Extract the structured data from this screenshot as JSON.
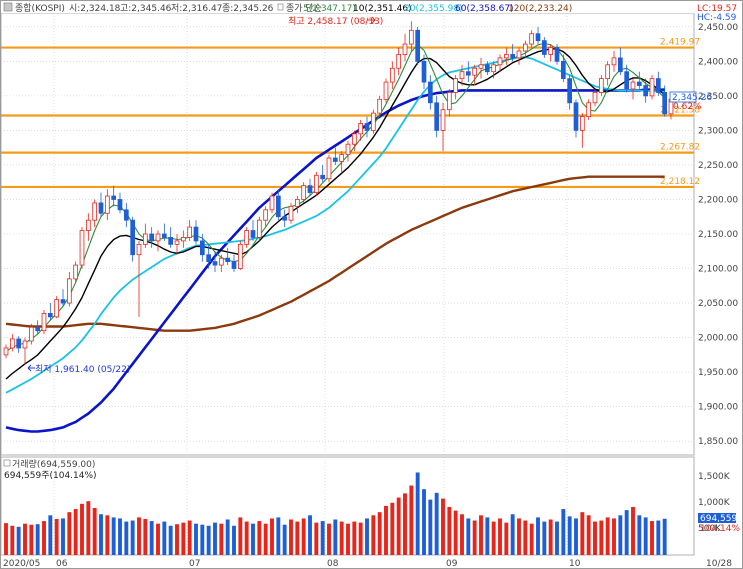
{
  "header": {
    "index_label": "종합(KOSPI)",
    "open_text": "시:2,324.18",
    "high_text": "고:2,345.46",
    "low_text": "저:2,316.47",
    "close_text": "종:2,345.26",
    "ma_prefix": "종가 단순",
    "ma5": "5(2,347.17)",
    "ma10": "10(2,351.46)",
    "ma20": "20(2,355.98)",
    "ma60": "60(2,358.67)",
    "ma120": "120(2,233.24)",
    "lc": "LC:19.57",
    "hc": "HC:-4.59"
  },
  "annotations": {
    "high_label": "최고 2,458.17 (08/13)",
    "low_label": "최저 1,961.40 (05/22)",
    "last_price_box": "2,345.26",
    "change_pct": "0.62%",
    "h_lines": [
      {
        "value": 2419.97,
        "label": "2,419.97"
      },
      {
        "value": 2321.58,
        "label": "2,321.58"
      },
      {
        "value": 2267.82,
        "label": "2,267.82"
      },
      {
        "value": 2218.12,
        "label": "2,218.12"
      }
    ]
  },
  "volume_panel": {
    "title": "거래량(694,559.00)",
    "subtitle": "694,559주(104.14%)",
    "axis_ticks": [
      "1,500K",
      "1,000K",
      "500K"
    ],
    "last_box": "694,559",
    "last_pct": "104.14%"
  },
  "colors": {
    "up": "#e8251b",
    "down": "#1e5fd8",
    "ma5": "#2e8b3d",
    "ma10": "#000000",
    "ma20": "#19c2e6",
    "ma60": "#0a14c8",
    "ma120": "#8b3a0e",
    "hline": "#f59a19"
  },
  "chart_data": {
    "type": "candlestick",
    "y_ticks": [
      "2,450.00",
      "2,400.00",
      "2,350.00",
      "2,300.00",
      "2,250.00",
      "2,200.00",
      "2,150.00",
      "2,100.00",
      "2,050.00",
      "2,000.00",
      "1,950.00",
      "1,900.00",
      "1,850.00"
    ],
    "ylim": [
      1830,
      2470
    ],
    "x_labels": [
      "2020/05",
      "06",
      "07",
      "08",
      "09",
      "10",
      "10/28"
    ],
    "candles": [
      [
        1975,
        1990,
        1970,
        1985
      ],
      [
        1985,
        2005,
        1980,
        1998
      ],
      [
        1998,
        2002,
        1978,
        1985
      ],
      [
        1985,
        2000,
        1961,
        1995
      ],
      [
        1995,
        2020,
        1990,
        2015
      ],
      [
        2015,
        2025,
        2005,
        2010
      ],
      [
        2010,
        2040,
        2005,
        2035
      ],
      [
        2035,
        2050,
        2025,
        2030
      ],
      [
        2030,
        2060,
        2028,
        2055
      ],
      [
        2055,
        2070,
        2045,
        2050
      ],
      [
        2050,
        2095,
        2045,
        2085
      ],
      [
        2085,
        2110,
        2080,
        2105
      ],
      [
        2105,
        2160,
        2100,
        2155
      ],
      [
        2155,
        2180,
        2140,
        2170
      ],
      [
        2170,
        2200,
        2160,
        2195
      ],
      [
        2195,
        2210,
        2175,
        2180
      ],
      [
        2180,
        2215,
        2170,
        2205
      ],
      [
        2205,
        2220,
        2190,
        2200
      ],
      [
        2200,
        2210,
        2180,
        2185
      ],
      [
        2185,
        2195,
        2160,
        2170
      ],
      [
        2170,
        2175,
        2110,
        2120
      ],
      [
        2120,
        2140,
        2030,
        2135
      ],
      [
        2135,
        2165,
        2130,
        2150
      ],
      [
        2150,
        2160,
        2130,
        2140
      ],
      [
        2140,
        2155,
        2125,
        2150
      ],
      [
        2150,
        2165,
        2140,
        2145
      ],
      [
        2145,
        2160,
        2130,
        2135
      ],
      [
        2135,
        2150,
        2120,
        2140
      ],
      [
        2140,
        2155,
        2130,
        2145
      ],
      [
        2145,
        2170,
        2140,
        2160
      ],
      [
        2160,
        2170,
        2135,
        2140
      ],
      [
        2140,
        2150,
        2110,
        2120
      ],
      [
        2120,
        2135,
        2100,
        2110
      ],
      [
        2110,
        2125,
        2095,
        2105
      ],
      [
        2105,
        2120,
        2095,
        2115
      ],
      [
        2115,
        2130,
        2105,
        2110
      ],
      [
        2110,
        2120,
        2095,
        2100
      ],
      [
        2100,
        2140,
        2098,
        2135
      ],
      [
        2135,
        2160,
        2130,
        2155
      ],
      [
        2155,
        2170,
        2140,
        2145
      ],
      [
        2145,
        2175,
        2140,
        2170
      ],
      [
        2170,
        2190,
        2160,
        2185
      ],
      [
        2185,
        2210,
        2180,
        2205
      ],
      [
        2205,
        2215,
        2170,
        2175
      ],
      [
        2175,
        2185,
        2160,
        2170
      ],
      [
        2170,
        2195,
        2165,
        2190
      ],
      [
        2190,
        2205,
        2180,
        2200
      ],
      [
        2200,
        2225,
        2195,
        2220
      ],
      [
        2220,
        2230,
        2205,
        2210
      ],
      [
        2210,
        2240,
        2205,
        2235
      ],
      [
        2235,
        2250,
        2225,
        2230
      ],
      [
        2230,
        2265,
        2225,
        2260
      ],
      [
        2260,
        2275,
        2250,
        2255
      ],
      [
        2255,
        2270,
        2240,
        2265
      ],
      [
        2265,
        2285,
        2255,
        2280
      ],
      [
        2280,
        2300,
        2270,
        2295
      ],
      [
        2295,
        2315,
        2285,
        2310
      ],
      [
        2310,
        2320,
        2290,
        2300
      ],
      [
        2300,
        2330,
        2295,
        2325
      ],
      [
        2325,
        2350,
        2320,
        2345
      ],
      [
        2345,
        2375,
        2340,
        2370
      ],
      [
        2370,
        2400,
        2360,
        2390
      ],
      [
        2390,
        2420,
        2380,
        2410
      ],
      [
        2410,
        2440,
        2400,
        2425
      ],
      [
        2425,
        2458,
        2415,
        2445
      ],
      [
        2445,
        2450,
        2395,
        2400
      ],
      [
        2400,
        2410,
        2360,
        2370
      ],
      [
        2370,
        2380,
        2330,
        2340
      ],
      [
        2340,
        2350,
        2290,
        2300
      ],
      [
        2300,
        2340,
        2270,
        2330
      ],
      [
        2330,
        2360,
        2320,
        2355
      ],
      [
        2355,
        2380,
        2345,
        2375
      ],
      [
        2375,
        2395,
        2365,
        2385
      ],
      [
        2385,
        2400,
        2370,
        2380
      ],
      [
        2380,
        2395,
        2365,
        2390
      ],
      [
        2390,
        2405,
        2375,
        2395
      ],
      [
        2395,
        2400,
        2380,
        2385
      ],
      [
        2385,
        2400,
        2375,
        2395
      ],
      [
        2395,
        2410,
        2385,
        2405
      ],
      [
        2405,
        2420,
        2395,
        2410
      ],
      [
        2410,
        2425,
        2400,
        2405
      ],
      [
        2405,
        2420,
        2395,
        2415
      ],
      [
        2415,
        2430,
        2405,
        2425
      ],
      [
        2425,
        2445,
        2420,
        2440
      ],
      [
        2440,
        2450,
        2425,
        2430
      ],
      [
        2430,
        2435,
        2405,
        2410
      ],
      [
        2410,
        2425,
        2400,
        2420
      ],
      [
        2420,
        2425,
        2395,
        2400
      ],
      [
        2400,
        2410,
        2370,
        2375
      ],
      [
        2375,
        2380,
        2330,
        2340
      ],
      [
        2340,
        2345,
        2290,
        2300
      ],
      [
        2300,
        2325,
        2275,
        2320
      ],
      [
        2320,
        2345,
        2315,
        2340
      ],
      [
        2340,
        2360,
        2335,
        2355
      ],
      [
        2355,
        2380,
        2350,
        2375
      ],
      [
        2375,
        2400,
        2365,
        2395
      ],
      [
        2395,
        2415,
        2385,
        2405
      ],
      [
        2405,
        2420,
        2380,
        2385
      ],
      [
        2385,
        2395,
        2355,
        2360
      ],
      [
        2360,
        2375,
        2345,
        2370
      ],
      [
        2370,
        2385,
        2360,
        2365
      ],
      [
        2365,
        2375,
        2340,
        2350
      ],
      [
        2350,
        2380,
        2345,
        2375
      ],
      [
        2375,
        2385,
        2350,
        2355
      ],
      [
        2355,
        2365,
        2320,
        2324
      ],
      [
        2324,
        2346,
        2316,
        2345
      ]
    ],
    "ma5": [
      1980,
      1986,
      1990,
      1992,
      1998,
      2005,
      2015,
      2025,
      2035,
      2045,
      2060,
      2080,
      2105,
      2130,
      2155,
      2175,
      2185,
      2192,
      2190,
      2180,
      2165,
      2150,
      2142,
      2140,
      2142,
      2144,
      2144,
      2142,
      2143,
      2146,
      2148,
      2144,
      2135,
      2124,
      2116,
      2112,
      2110,
      2112,
      2122,
      2134,
      2148,
      2160,
      2174,
      2184,
      2188,
      2190,
      2192,
      2198,
      2206,
      2214,
      2224,
      2234,
      2244,
      2254,
      2264,
      2276,
      2288,
      2298,
      2308,
      2322,
      2338,
      2356,
      2374,
      2394,
      2414,
      2424,
      2416,
      2396,
      2374,
      2352,
      2338,
      2340,
      2350,
      2362,
      2374,
      2386,
      2390,
      2392,
      2396,
      2402,
      2404,
      2408,
      2412,
      2418,
      2424,
      2426,
      2424,
      2418,
      2406,
      2390,
      2364,
      2340,
      2330,
      2328,
      2340,
      2360,
      2378,
      2388,
      2390,
      2384,
      2376,
      2368,
      2362,
      2356,
      2347
    ],
    "ma10": [
      1940,
      1948,
      1955,
      1962,
      1968,
      1975,
      1985,
      1995,
      2005,
      2015,
      2028,
      2042,
      2058,
      2078,
      2098,
      2118,
      2132,
      2142,
      2147,
      2148,
      2145,
      2142,
      2140,
      2137,
      2133,
      2128,
      2124,
      2122,
      2124,
      2128,
      2132,
      2132,
      2130,
      2128,
      2126,
      2124,
      2122,
      2120,
      2124,
      2132,
      2140,
      2150,
      2160,
      2168,
      2176,
      2182,
      2188,
      2194,
      2200,
      2206,
      2214,
      2222,
      2230,
      2238,
      2246,
      2256,
      2266,
      2278,
      2290,
      2304,
      2320,
      2336,
      2352,
      2368,
      2384,
      2398,
      2404,
      2404,
      2398,
      2388,
      2378,
      2372,
      2368,
      2366,
      2366,
      2370,
      2374,
      2380,
      2386,
      2392,
      2398,
      2402,
      2406,
      2410,
      2414,
      2416,
      2418,
      2418,
      2414,
      2406,
      2394,
      2380,
      2368,
      2360,
      2356,
      2356,
      2360,
      2366,
      2372,
      2376,
      2376,
      2372,
      2366,
      2360,
      2351
    ],
    "ma20": [
      1920,
      1925,
      1930,
      1935,
      1940,
      1946,
      1952,
      1958,
      1964,
      1970,
      1978,
      1986,
      1996,
      2008,
      2020,
      2034,
      2046,
      2058,
      2068,
      2076,
      2084,
      2090,
      2096,
      2102,
      2108,
      2114,
      2118,
      2122,
      2126,
      2130,
      2133,
      2134,
      2135,
      2136,
      2137,
      2138,
      2139,
      2140,
      2141,
      2143,
      2145,
      2147,
      2150,
      2153,
      2156,
      2160,
      2164,
      2168,
      2172,
      2176,
      2182,
      2188,
      2196,
      2204,
      2212,
      2222,
      2232,
      2242,
      2252,
      2262,
      2274,
      2288,
      2302,
      2316,
      2330,
      2344,
      2356,
      2366,
      2374,
      2380,
      2384,
      2386,
      2388,
      2390,
      2392,
      2394,
      2396,
      2398,
      2400,
      2402,
      2404,
      2406,
      2406,
      2404,
      2400,
      2396,
      2392,
      2388,
      2384,
      2380,
      2376,
      2372,
      2368,
      2364,
      2362,
      2360,
      2359,
      2358,
      2358,
      2358,
      2358,
      2357,
      2357,
      2356,
      2356
    ],
    "ma60": [
      1870,
      1868,
      1866,
      1865,
      1864,
      1864,
      1865,
      1866,
      1868,
      1870,
      1874,
      1878,
      1884,
      1890,
      1898,
      1906,
      1916,
      1926,
      1938,
      1950,
      1962,
      1974,
      1986,
      1998,
      2010,
      2022,
      2034,
      2046,
      2058,
      2070,
      2082,
      2094,
      2106,
      2118,
      2128,
      2138,
      2148,
      2158,
      2168,
      2178,
      2188,
      2196,
      2204,
      2212,
      2220,
      2228,
      2236,
      2244,
      2252,
      2260,
      2266,
      2272,
      2278,
      2284,
      2290,
      2296,
      2302,
      2308,
      2314,
      2320,
      2326,
      2331,
      2336,
      2340,
      2344,
      2347,
      2350,
      2352,
      2354,
      2355,
      2356,
      2357,
      2358,
      2358,
      2358,
      2358,
      2358,
      2358,
      2358,
      2358,
      2358,
      2358,
      2358,
      2358,
      2358,
      2358,
      2358,
      2358,
      2358,
      2358,
      2358,
      2358,
      2358,
      2358,
      2358,
      2358,
      2358,
      2358,
      2358,
      2358,
      2358,
      2359,
      2359,
      2359,
      2359
    ],
    "ma120": [
      2020,
      2019,
      2018,
      2017,
      2016,
      2016,
      2016,
      2016,
      2016,
      2016,
      2017,
      2018,
      2019,
      2020,
      2020,
      2020,
      2019,
      2018,
      2017,
      2016,
      2015,
      2014,
      2013,
      2012,
      2011,
      2010,
      2010,
      2010,
      2010,
      2010,
      2011,
      2012,
      2013,
      2014,
      2016,
      2018,
      2020,
      2023,
      2026,
      2029,
      2032,
      2036,
      2040,
      2044,
      2048,
      2052,
      2057,
      2062,
      2067,
      2072,
      2077,
      2082,
      2088,
      2094,
      2100,
      2106,
      2112,
      2118,
      2124,
      2130,
      2136,
      2141,
      2146,
      2151,
      2156,
      2160,
      2164,
      2168,
      2172,
      2176,
      2180,
      2184,
      2188,
      2191,
      2194,
      2197,
      2200,
      2203,
      2206,
      2209,
      2212,
      2214,
      2216,
      2218,
      2220,
      2222,
      2224,
      2226,
      2228,
      2230,
      2231,
      2232,
      2233,
      2233,
      2233,
      2233,
      2233,
      2233,
      2233,
      2233,
      2233,
      2233,
      2233,
      2233,
      2233
    ],
    "volume": [
      610,
      560,
      540,
      600,
      580,
      590,
      650,
      760,
      690,
      700,
      820,
      880,
      980,
      1030,
      900,
      780,
      760,
      720,
      700,
      640,
      660,
      720,
      690,
      650,
      600,
      640,
      560,
      590,
      620,
      660,
      600,
      580,
      560,
      620,
      600,
      680,
      560,
      720,
      640,
      600,
      650,
      600,
      700,
      720,
      580,
      680,
      640,
      700,
      760,
      620,
      650,
      600,
      680,
      640,
      600,
      640,
      620,
      700,
      760,
      820,
      940,
      1000,
      1100,
      1180,
      1330,
      1580,
      1260,
      1060,
      1190,
      1080,
      920,
      850,
      780,
      700,
      660,
      760,
      720,
      640,
      700,
      620,
      780,
      700,
      660,
      600,
      720,
      640,
      680,
      640,
      880,
      740,
      700,
      820,
      760,
      640,
      660,
      720,
      700,
      760,
      860,
      920,
      760,
      720,
      650,
      660,
      694
    ]
  }
}
